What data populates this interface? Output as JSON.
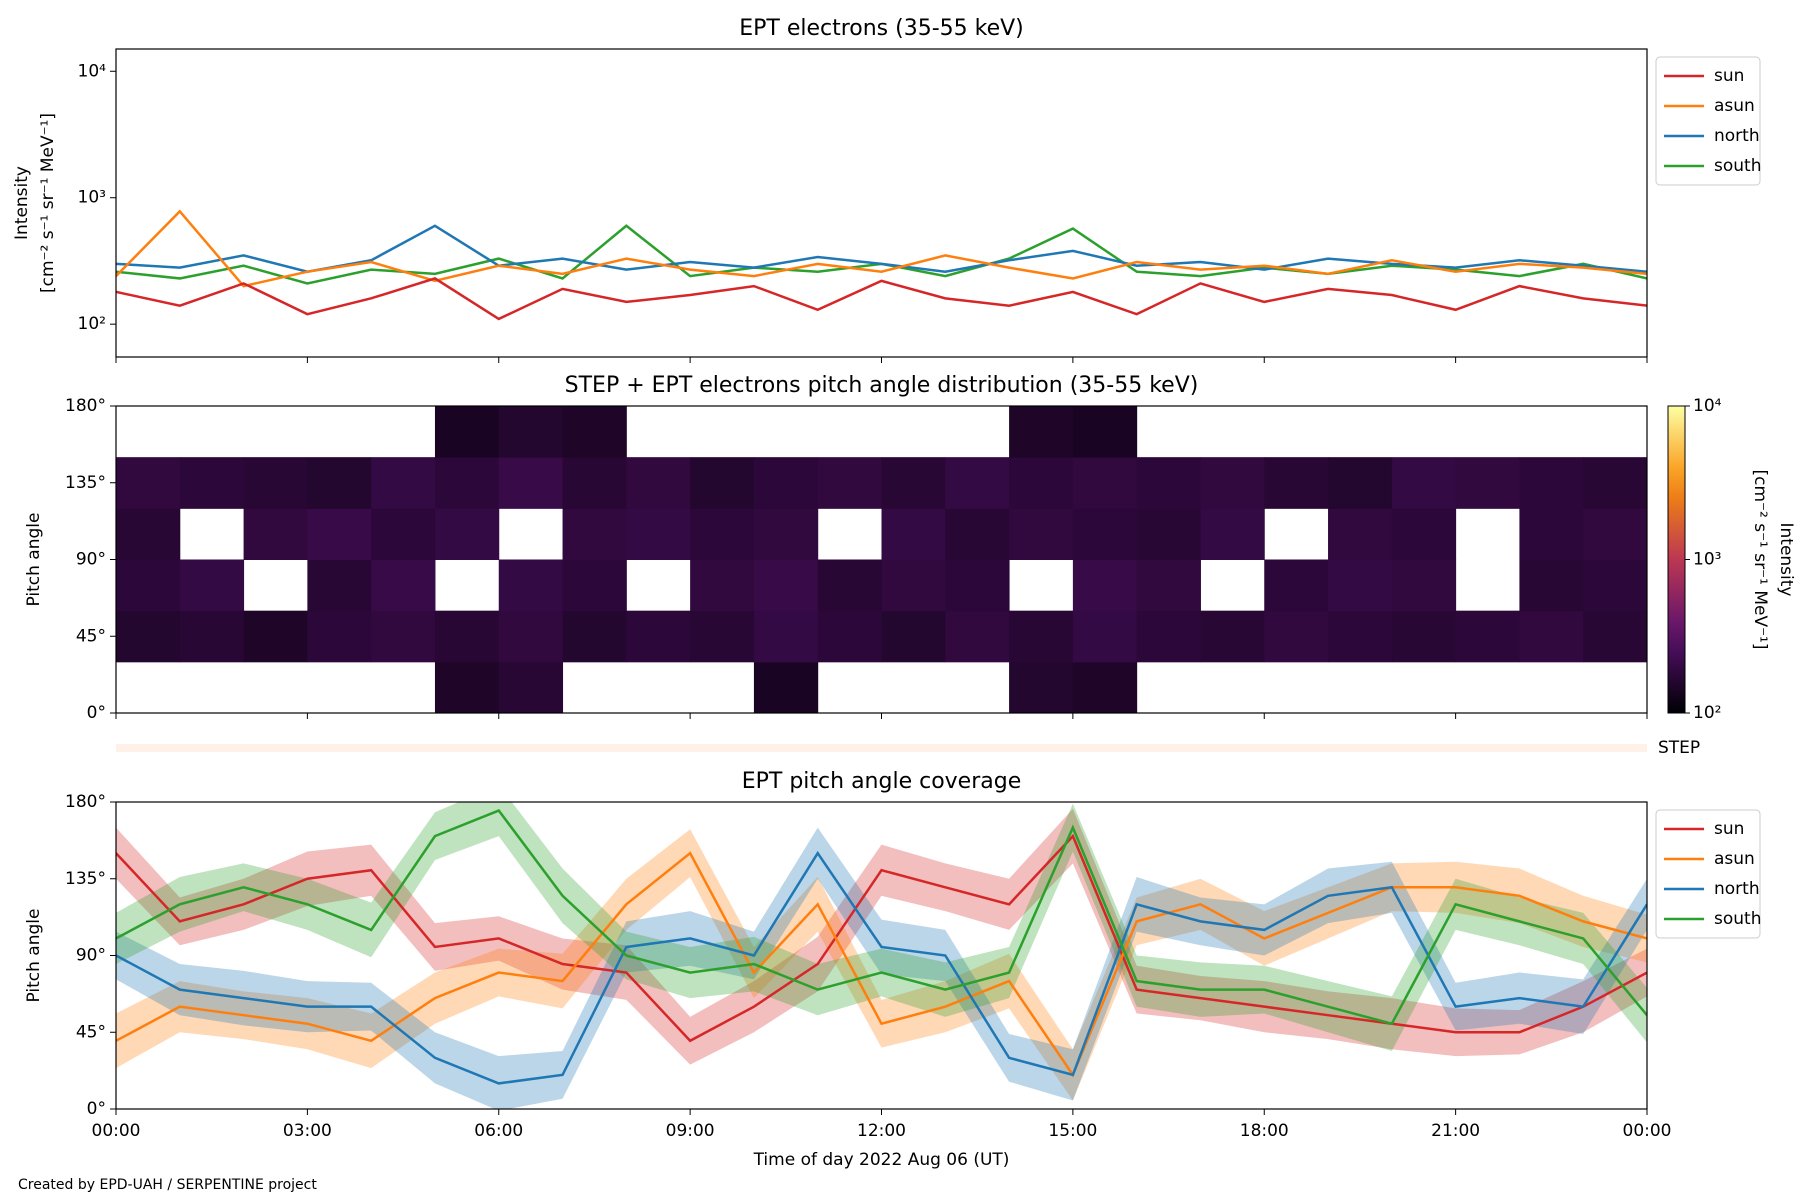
{
  "chart_data": [
    {
      "type": "line",
      "title": "EPT electrons (35-55 keV)",
      "ylabel": [
        "Intensity",
        "[cm⁻² s⁻¹ sr⁻¹ MeV⁻¹]"
      ],
      "log_y": true,
      "ylim": [
        55,
        15000
      ],
      "yticks": [
        {
          "value": 100,
          "label": "10²"
        },
        {
          "value": 1000,
          "label": "10³"
        },
        {
          "value": 10000,
          "label": "10⁴"
        }
      ],
      "x": [
        0,
        1,
        2,
        3,
        4,
        5,
        6,
        7,
        8,
        9,
        10,
        11,
        12,
        13,
        14,
        15,
        16,
        17,
        18,
        19,
        20,
        21,
        22,
        23,
        24
      ],
      "legend": "outside right",
      "series": [
        {
          "name": "sun",
          "color": "#d62728",
          "values": [
            180,
            140,
            210,
            120,
            160,
            230,
            110,
            190,
            150,
            170,
            200,
            130,
            220,
            160,
            140,
            180,
            120,
            210,
            150,
            190,
            170,
            130,
            200,
            160,
            140
          ]
        },
        {
          "name": "asun",
          "color": "#ff7f0e",
          "values": [
            240,
            780,
            200,
            260,
            310,
            220,
            290,
            250,
            330,
            270,
            240,
            300,
            260,
            350,
            280,
            230,
            310,
            270,
            290,
            250,
            320,
            260,
            300,
            280,
            250
          ]
        },
        {
          "name": "north",
          "color": "#1f77b4",
          "values": [
            300,
            280,
            350,
            260,
            320,
            600,
            290,
            330,
            270,
            310,
            280,
            340,
            300,
            260,
            320,
            380,
            290,
            310,
            270,
            330,
            300,
            280,
            320,
            290,
            260
          ]
        },
        {
          "name": "south",
          "color": "#2ca02c",
          "values": [
            260,
            230,
            290,
            210,
            270,
            250,
            330,
            230,
            600,
            240,
            280,
            260,
            300,
            240,
            330,
            570,
            260,
            240,
            280,
            250,
            290,
            270,
            240,
            300,
            230
          ]
        }
      ]
    },
    {
      "type": "heatmap",
      "title": "STEP + EPT electrons pitch angle distribution (35-55 keV)",
      "ylabel": "Pitch angle",
      "ylim": [
        0,
        180
      ],
      "yticks": [
        {
          "value": 0,
          "label": "0°"
        },
        {
          "value": 45,
          "label": "45°"
        },
        {
          "value": 90,
          "label": "90°"
        },
        {
          "value": 135,
          "label": "135°"
        },
        {
          "value": 180,
          "label": "180°"
        }
      ],
      "xbins": [
        0,
        1,
        2,
        3,
        4,
        5,
        6,
        7,
        8,
        9,
        10,
        11,
        12,
        13,
        14,
        15,
        16,
        17,
        18,
        19,
        20,
        21,
        22,
        23,
        24
      ],
      "ybins": [
        0,
        30,
        60,
        90,
        120,
        150,
        180
      ],
      "values": [
        [
          null,
          160,
          180,
          170,
          190,
          null
        ],
        [
          null,
          170,
          200,
          null,
          180,
          null
        ],
        [
          null,
          150,
          null,
          190,
          170,
          null
        ],
        [
          null,
          180,
          170,
          210,
          160,
          null
        ],
        [
          null,
          190,
          210,
          180,
          200,
          null
        ],
        [
          150,
          170,
          null,
          200,
          180,
          140
        ],
        [
          170,
          190,
          200,
          null,
          210,
          160
        ],
        [
          null,
          160,
          180,
          190,
          170,
          150
        ],
        [
          null,
          180,
          null,
          200,
          190,
          null
        ],
        [
          null,
          170,
          190,
          180,
          160,
          null
        ],
        [
          140,
          200,
          210,
          190,
          180,
          null
        ],
        [
          null,
          180,
          170,
          null,
          190,
          null
        ],
        [
          null,
          160,
          190,
          200,
          170,
          null
        ],
        [
          null,
          190,
          180,
          170,
          200,
          null
        ],
        [
          160,
          170,
          null,
          190,
          180,
          150
        ],
        [
          150,
          200,
          210,
          180,
          190,
          140
        ],
        [
          null,
          180,
          190,
          170,
          180,
          null
        ],
        [
          null,
          170,
          null,
          200,
          190,
          null
        ],
        [
          null,
          190,
          180,
          null,
          170,
          null
        ],
        [
          null,
          180,
          200,
          190,
          160,
          null
        ],
        [
          null,
          170,
          190,
          180,
          200,
          null
        ],
        [
          null,
          180,
          null,
          null,
          190,
          null
        ],
        [
          null,
          190,
          170,
          180,
          180,
          null
        ],
        [
          null,
          170,
          180,
          190,
          170,
          null
        ]
      ],
      "clim": [
        100,
        10000
      ],
      "colormap": "inferno",
      "cticks": [
        {
          "value": 100,
          "label": "10²"
        },
        {
          "value": 1000,
          "label": "10³"
        },
        {
          "value": 10000,
          "label": "10⁴"
        }
      ],
      "clabel": [
        "Intensity",
        "[cm⁻² s⁻¹ sr⁻¹ MeV⁻¹]"
      ],
      "step_label": "STEP"
    },
    {
      "type": "band_line",
      "title": "EPT pitch angle coverage",
      "ylabel": "Pitch angle",
      "ylim": [
        0,
        180
      ],
      "yticks": [
        {
          "value": 0,
          "label": "0°"
        },
        {
          "value": 45,
          "label": "45°"
        },
        {
          "value": 90,
          "label": "90°"
        },
        {
          "value": 135,
          "label": "135°"
        },
        {
          "value": 180,
          "label": "180°"
        }
      ],
      "xlabel": "Time of day 2022 Aug 06 (UT)",
      "xlim": [
        0,
        24
      ],
      "xticks": [
        {
          "value": 0,
          "label": "00:00"
        },
        {
          "value": 3,
          "label": "03:00"
        },
        {
          "value": 6,
          "label": "06:00"
        },
        {
          "value": 9,
          "label": "09:00"
        },
        {
          "value": 12,
          "label": "12:00"
        },
        {
          "value": 15,
          "label": "15:00"
        },
        {
          "value": 18,
          "label": "18:00"
        },
        {
          "value": 21,
          "label": "21:00"
        },
        {
          "value": 24,
          "label": "00:00"
        }
      ],
      "x": [
        0,
        1,
        2,
        3,
        4,
        5,
        6,
        7,
        8,
        9,
        10,
        11,
        12,
        13,
        14,
        15,
        16,
        17,
        18,
        19,
        20,
        21,
        22,
        23,
        24
      ],
      "legend": "outside right",
      "series": [
        {
          "name": "sun",
          "color": "#d62728",
          "values": [
            150,
            110,
            120,
            135,
            140,
            95,
            100,
            85,
            80,
            40,
            60,
            85,
            140,
            130,
            120,
            160,
            70,
            65,
            60,
            55,
            50,
            45,
            45,
            60,
            80
          ],
          "errors": [
            15,
            14,
            15,
            16,
            15,
            14,
            13,
            15,
            16,
            14,
            15,
            16,
            15,
            14,
            15,
            16,
            14,
            13,
            15,
            14,
            15,
            14,
            13,
            15,
            14
          ]
        },
        {
          "name": "asun",
          "color": "#ff7f0e",
          "values": [
            40,
            60,
            55,
            50,
            40,
            65,
            80,
            75,
            120,
            150,
            80,
            120,
            50,
            60,
            75,
            20,
            110,
            120,
            100,
            115,
            130,
            130,
            125,
            110,
            100
          ],
          "errors": [
            16,
            15,
            14,
            15,
            16,
            15,
            14,
            16,
            15,
            14,
            15,
            16,
            14,
            15,
            16,
            15,
            14,
            15,
            16,
            15,
            14,
            15,
            16,
            15,
            14
          ]
        },
        {
          "name": "north",
          "color": "#1f77b4",
          "values": [
            90,
            70,
            65,
            60,
            60,
            30,
            15,
            20,
            95,
            100,
            90,
            150,
            95,
            90,
            30,
            20,
            120,
            110,
            105,
            125,
            130,
            60,
            65,
            60,
            120
          ],
          "errors": [
            14,
            15,
            16,
            15,
            14,
            15,
            16,
            14,
            15,
            16,
            14,
            15,
            16,
            15,
            14,
            15,
            16,
            14,
            15,
            16,
            15,
            14,
            15,
            16,
            15
          ]
        },
        {
          "name": "south",
          "color": "#2ca02c",
          "values": [
            100,
            120,
            130,
            120,
            105,
            160,
            175,
            125,
            90,
            80,
            85,
            70,
            80,
            70,
            80,
            165,
            75,
            70,
            70,
            60,
            50,
            120,
            110,
            100,
            55
          ],
          "errors": [
            15,
            16,
            14,
            15,
            16,
            14,
            15,
            16,
            14,
            15,
            16,
            15,
            14,
            16,
            15,
            14,
            15,
            16,
            14,
            15,
            16,
            15,
            14,
            15,
            16
          ]
        }
      ]
    }
  ],
  "footer": "Created by EPD-UAH / SERPENTINE project"
}
